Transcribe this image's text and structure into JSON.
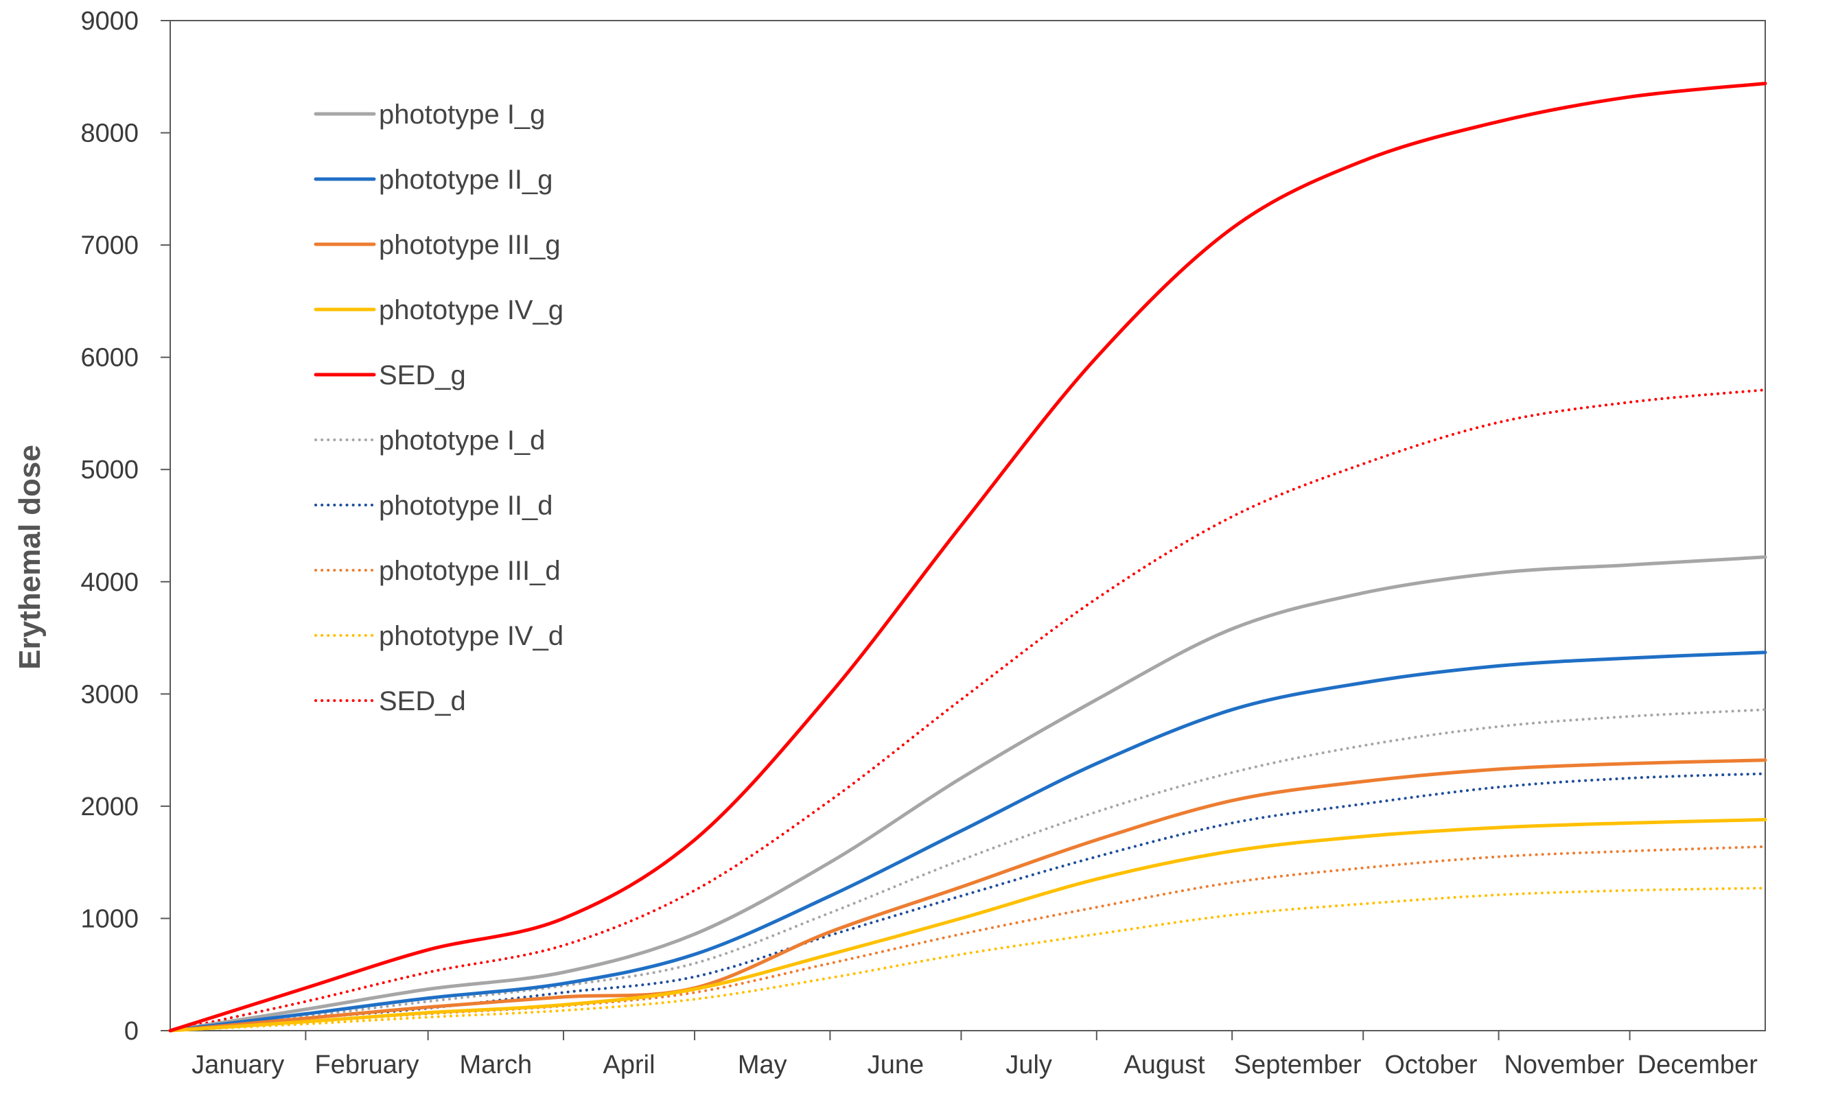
{
  "chart_data": {
    "type": "line",
    "title": "",
    "xlabel": "",
    "ylabel": "Erythemal dose",
    "ylim": [
      0,
      9000
    ],
    "yticks": [
      0,
      1000,
      2000,
      3000,
      4000,
      5000,
      6000,
      7000,
      8000,
      9000
    ],
    "xlim": [
      0,
      365
    ],
    "months": [
      "January",
      "February",
      "March",
      "April",
      "May",
      "June",
      "July",
      "August",
      "September",
      "October",
      "November",
      "December"
    ],
    "month_day": [
      0,
      31,
      59,
      90,
      120,
      151,
      181,
      212,
      243,
      273,
      304,
      334
    ],
    "x": [
      0,
      31,
      59,
      90,
      120,
      151,
      181,
      212,
      243,
      273,
      304,
      334,
      365
    ],
    "grid": false,
    "legend_position": "top-left",
    "series": [
      {
        "name": "phototype I_g",
        "color": "#A6A6A6",
        "style": "solid",
        "values": [
          0,
          190,
          370,
          520,
          860,
          1500,
          2250,
          2950,
          3580,
          3900,
          4080,
          4150,
          4220
        ]
      },
      {
        "name": "phototype II_g",
        "color": "#1F6FC5",
        "style": "solid",
        "values": [
          0,
          150,
          290,
          420,
          680,
          1200,
          1780,
          2380,
          2860,
          3100,
          3250,
          3320,
          3370
        ]
      },
      {
        "name": "phototype III_g",
        "color": "#ED7D31",
        "style": "solid",
        "values": [
          0,
          110,
          210,
          300,
          380,
          880,
          1280,
          1700,
          2050,
          2220,
          2330,
          2380,
          2410
        ]
      },
      {
        "name": "phototype IV_g",
        "color": "#FFC000",
        "style": "solid",
        "values": [
          0,
          80,
          160,
          230,
          370,
          680,
          1000,
          1350,
          1600,
          1730,
          1810,
          1850,
          1880
        ]
      },
      {
        "name": "SED_g",
        "color": "#FF0000",
        "style": "solid",
        "values": [
          0,
          380,
          720,
          1000,
          1700,
          3000,
          4500,
          6000,
          7150,
          7750,
          8100,
          8320,
          8440
        ]
      },
      {
        "name": "phototype I_d",
        "color": "#A6A6A6",
        "style": "dotted",
        "values": [
          0,
          130,
          260,
          400,
          600,
          1050,
          1520,
          1950,
          2300,
          2540,
          2710,
          2800,
          2860
        ]
      },
      {
        "name": "phototype II_d",
        "color": "#1F4E9A",
        "style": "dotted",
        "values": [
          0,
          110,
          200,
          340,
          480,
          850,
          1200,
          1550,
          1850,
          2020,
          2170,
          2250,
          2290
        ]
      },
      {
        "name": "phototype III_d",
        "color": "#ED7D31",
        "style": "dotted",
        "values": [
          0,
          80,
          150,
          220,
          340,
          600,
          860,
          1100,
          1320,
          1450,
          1550,
          1600,
          1640
        ]
      },
      {
        "name": "phototype IV_d",
        "color": "#FFC000",
        "style": "dotted",
        "values": [
          0,
          60,
          120,
          180,
          280,
          470,
          680,
          860,
          1030,
          1130,
          1210,
          1250,
          1270
        ]
      },
      {
        "name": "SED_d",
        "color": "#FF0000",
        "style": "dotted",
        "values": [
          0,
          260,
          520,
          760,
          1250,
          2050,
          2950,
          3850,
          4580,
          5050,
          5420,
          5600,
          5710
        ]
      }
    ]
  }
}
